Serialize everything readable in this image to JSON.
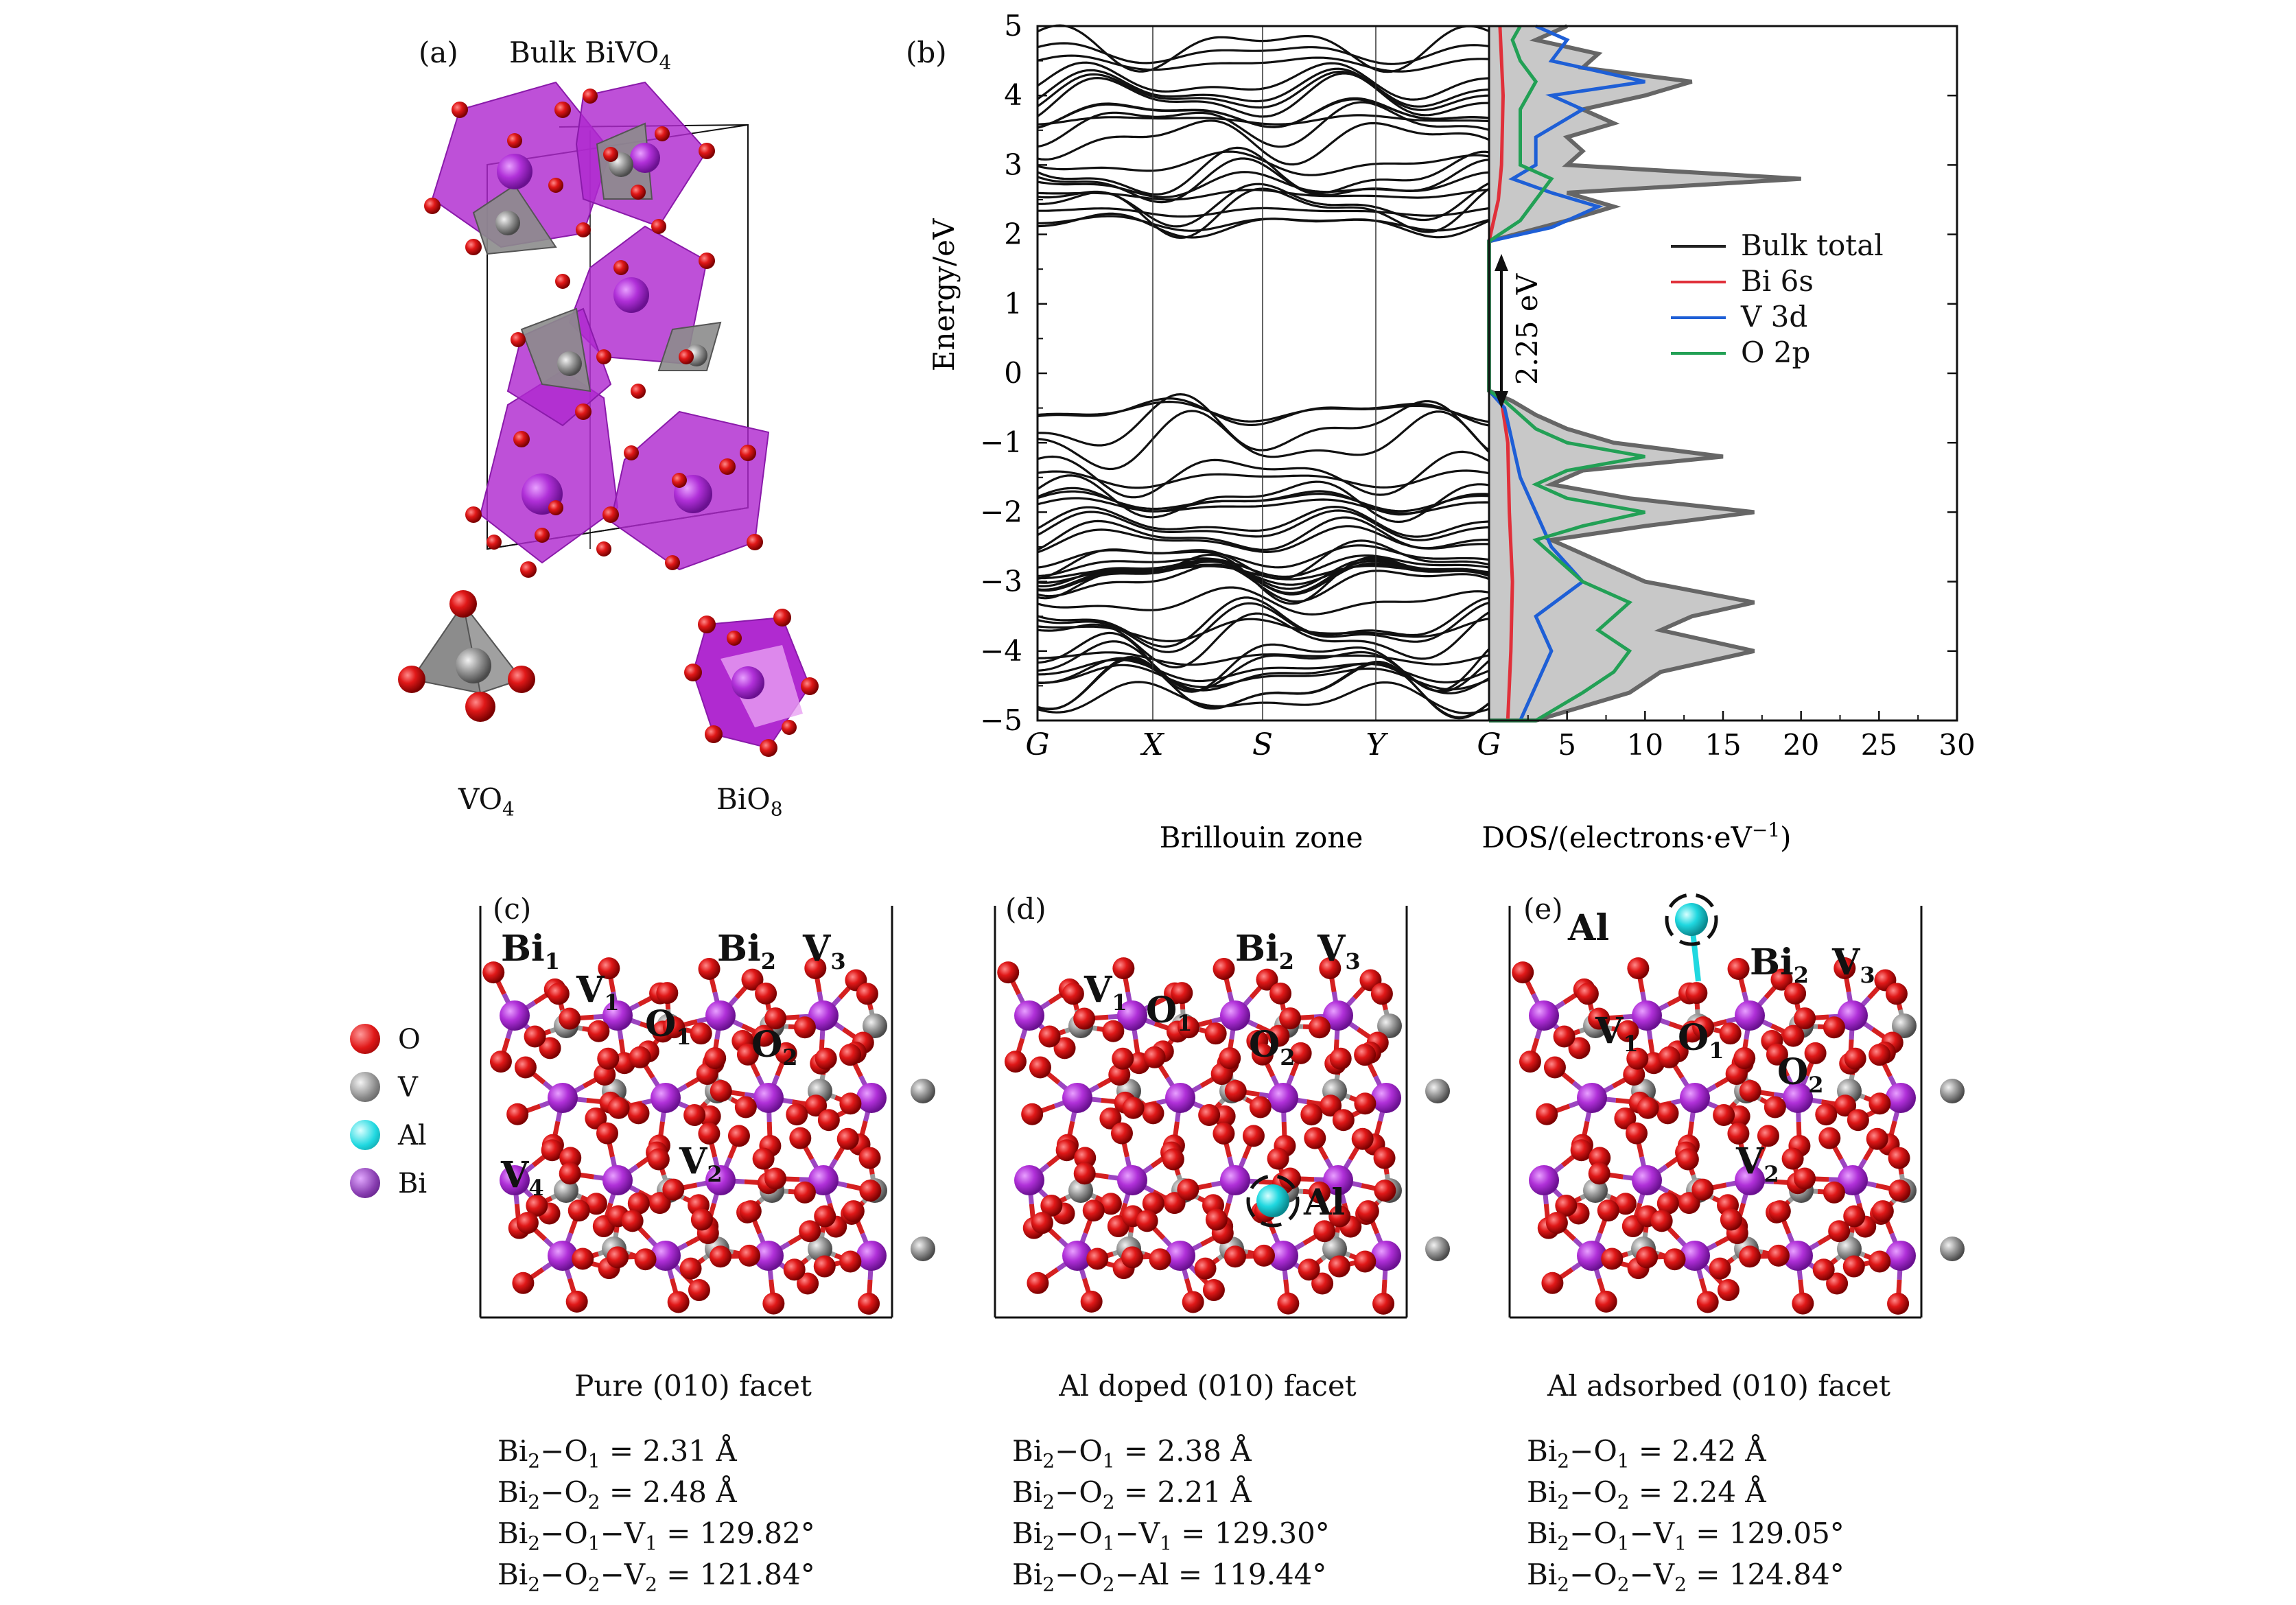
{
  "panels": {
    "a": {
      "tag": "(a)",
      "title": "Bulk BiVO",
      "title_sub": "4",
      "vo4": "VO",
      "vo4_sub": "4",
      "bio8": "BiO",
      "bio8_sub": "8"
    },
    "b": {
      "tag": "(b)"
    },
    "c": {
      "tag": "(c)",
      "caption": "Pure (010) facet"
    },
    "d": {
      "tag": "(d)",
      "caption": "Al doped (010) facet"
    },
    "e": {
      "tag": "(e)",
      "caption": "Al adsorbed (010) facet"
    }
  },
  "chart_data": [
    {
      "type": "line",
      "panel": "b-band-structure",
      "xlabel": "Brillouin zone",
      "ylabel": "Energy/eV",
      "x_ticks": [
        "G",
        "X",
        "S",
        "Y",
        "G"
      ],
      "ylim": [
        -5,
        5
      ],
      "y_ticks": [
        -5,
        -4,
        -3,
        -2,
        -1,
        0,
        1,
        2,
        3,
        4,
        5
      ],
      "valence_band_max": -0.3,
      "conduction_band_min": 1.95,
      "band_gap_label": "2.25 eV"
    },
    {
      "type": "area",
      "panel": "b-dos",
      "xlabel": "DOS/(electrons·eV",
      "xlabel_sup": "−1",
      "xlabel_close": ")",
      "xlim": [
        0,
        30
      ],
      "x_ticks": [
        5,
        10,
        15,
        20,
        25,
        30
      ],
      "ylim": [
        -5,
        5
      ],
      "legend_position": "right",
      "series": [
        {
          "name": "Bulk total",
          "color": "#222222",
          "energy": [
            -5.0,
            -4.6,
            -4.3,
            -4.0,
            -3.7,
            -3.5,
            -3.3,
            -3.0,
            -2.8,
            -2.6,
            -2.4,
            -2.2,
            -2.0,
            -1.8,
            -1.6,
            -1.4,
            -1.2,
            -1.0,
            -0.8,
            -0.6,
            -0.4,
            -0.25,
            1.9,
            2.05,
            2.2,
            2.4,
            2.6,
            2.8,
            3.0,
            3.2,
            3.4,
            3.6,
            3.8,
            4.0,
            4.2,
            4.4,
            4.6,
            4.8,
            5.0
          ],
          "dos": [
            3,
            9,
            11,
            17,
            11,
            13,
            17,
            10,
            8,
            6,
            4,
            10,
            17,
            9,
            4,
            6,
            15,
            8,
            5,
            3,
            1.5,
            0,
            0,
            2.5,
            5,
            8,
            5,
            20,
            5,
            6,
            5,
            8,
            6,
            10,
            13,
            6,
            7,
            3,
            5
          ]
        },
        {
          "name": "Bi 6s",
          "color": "#e0303a",
          "energy": [
            -5.0,
            -4.0,
            -3.0,
            -2.0,
            -1.0,
            -0.4,
            -0.25,
            1.9,
            2.5,
            3.0,
            4.0,
            5.0
          ],
          "dos": [
            1.2,
            1.4,
            1.5,
            1.3,
            1.2,
            0.8,
            0,
            0,
            0.6,
            0.8,
            0.9,
            0.7
          ]
        },
        {
          "name": "V 3d",
          "color": "#1e5fd6",
          "energy": [
            -5.0,
            -4.5,
            -4.0,
            -3.5,
            -3.0,
            -2.5,
            -2.0,
            -1.5,
            -1.0,
            -0.5,
            -0.25,
            1.9,
            2.1,
            2.4,
            2.6,
            2.8,
            3.0,
            3.4,
            3.8,
            4.0,
            4.2,
            4.5,
            4.8,
            5.0
          ],
          "dos": [
            2,
            3,
            4,
            3,
            6,
            4,
            3,
            2,
            1.5,
            1,
            0,
            0,
            4,
            7,
            4,
            1.5,
            3,
            3,
            6,
            4,
            10,
            4,
            5,
            3
          ]
        },
        {
          "name": "O 2p",
          "color": "#22a055",
          "energy": [
            -5.0,
            -4.6,
            -4.3,
            -4.0,
            -3.7,
            -3.5,
            -3.3,
            -3.0,
            -2.8,
            -2.6,
            -2.4,
            -2.2,
            -2.0,
            -1.8,
            -1.6,
            -1.4,
            -1.2,
            -1.0,
            -0.8,
            -0.6,
            -0.4,
            -0.25,
            1.9,
            2.2,
            2.5,
            2.8,
            3.0,
            3.4,
            3.8,
            4.2,
            4.5,
            4.8,
            5.0
          ],
          "dos": [
            3,
            6,
            8,
            9,
            7,
            8,
            9,
            6,
            5,
            4,
            3,
            6,
            10,
            5,
            3,
            5,
            10,
            5,
            3,
            2,
            1,
            0,
            0,
            2,
            3,
            4,
            2,
            2,
            2,
            3,
            2,
            1.5,
            2
          ]
        }
      ]
    }
  ],
  "atom_key": [
    {
      "symbol": "O",
      "color": "#e01818"
    },
    {
      "symbol": "V",
      "color": "#8c8c8c"
    },
    {
      "symbol": "Al",
      "color": "#20d8e0"
    },
    {
      "symbol": "Bi",
      "color": "#8a3fb2"
    }
  ],
  "atom_labels": {
    "c": [
      {
        "t": "Bi",
        "s": "1"
      },
      {
        "t": "V",
        "s": "1"
      },
      {
        "t": "O",
        "s": "1"
      },
      {
        "t": "Bi",
        "s": "2"
      },
      {
        "t": "O",
        "s": "2"
      },
      {
        "t": "V",
        "s": "3"
      },
      {
        "t": "V",
        "s": "4"
      },
      {
        "t": "V",
        "s": "2"
      }
    ],
    "d": [
      {
        "t": "V",
        "s": "1"
      },
      {
        "t": "O",
        "s": "1"
      },
      {
        "t": "Bi",
        "s": "2"
      },
      {
        "t": "O",
        "s": "2"
      },
      {
        "t": "V",
        "s": "3"
      },
      {
        "t": "Al",
        "s": ""
      }
    ],
    "e": [
      {
        "t": "Al",
        "s": ""
      },
      {
        "t": "V",
        "s": "1"
      },
      {
        "t": "O",
        "s": "1"
      },
      {
        "t": "Bi",
        "s": "2"
      },
      {
        "t": "V",
        "s": "3"
      },
      {
        "t": "O",
        "s": "2"
      },
      {
        "t": "V",
        "s": "2"
      }
    ]
  },
  "measurements": {
    "c": [
      {
        "a": "Bi",
        "as": "2",
        "rest": "−O",
        "rs": "1",
        "val": " = 2.31 Å"
      },
      {
        "a": "Bi",
        "as": "2",
        "rest": "−O",
        "rs": "2",
        "val": " = 2.48 Å"
      },
      {
        "a": "Bi",
        "as": "2",
        "rest": "−O",
        "rs": "1",
        "rest2": "−V",
        "rs2": "1",
        "val": " = 129.82°"
      },
      {
        "a": "Bi",
        "as": "2",
        "rest": "−O",
        "rs": "2",
        "rest2": "−V",
        "rs2": "2",
        "val": " = 121.84°"
      }
    ],
    "d": [
      {
        "a": "Bi",
        "as": "2",
        "rest": "−O",
        "rs": "1",
        "val": " = 2.38 Å"
      },
      {
        "a": "Bi",
        "as": "2",
        "rest": "−O",
        "rs": "2",
        "val": " = 2.21 Å"
      },
      {
        "a": "Bi",
        "as": "2",
        "rest": "−O",
        "rs": "1",
        "rest2": "−V",
        "rs2": "1",
        "val": " = 129.30°"
      },
      {
        "a": "Bi",
        "as": "2",
        "rest": "−O",
        "rs": "2",
        "rest2": "−Al",
        "rs2": "",
        "val": " = 119.44°"
      }
    ],
    "e": [
      {
        "a": "Bi",
        "as": "2",
        "rest": "−O",
        "rs": "1",
        "val": " = 2.42 Å"
      },
      {
        "a": "Bi",
        "as": "2",
        "rest": "−O",
        "rs": "2",
        "val": " = 2.24 Å"
      },
      {
        "a": "Bi",
        "as": "2",
        "rest": "−O",
        "rs": "1",
        "rest2": "−V",
        "rs2": "1",
        "val": " = 129.05°"
      },
      {
        "a": "Bi",
        "as": "2",
        "rest": "−O",
        "rs": "2",
        "rest2": "−V",
        "rs2": "2",
        "val": " = 124.84°"
      }
    ]
  }
}
